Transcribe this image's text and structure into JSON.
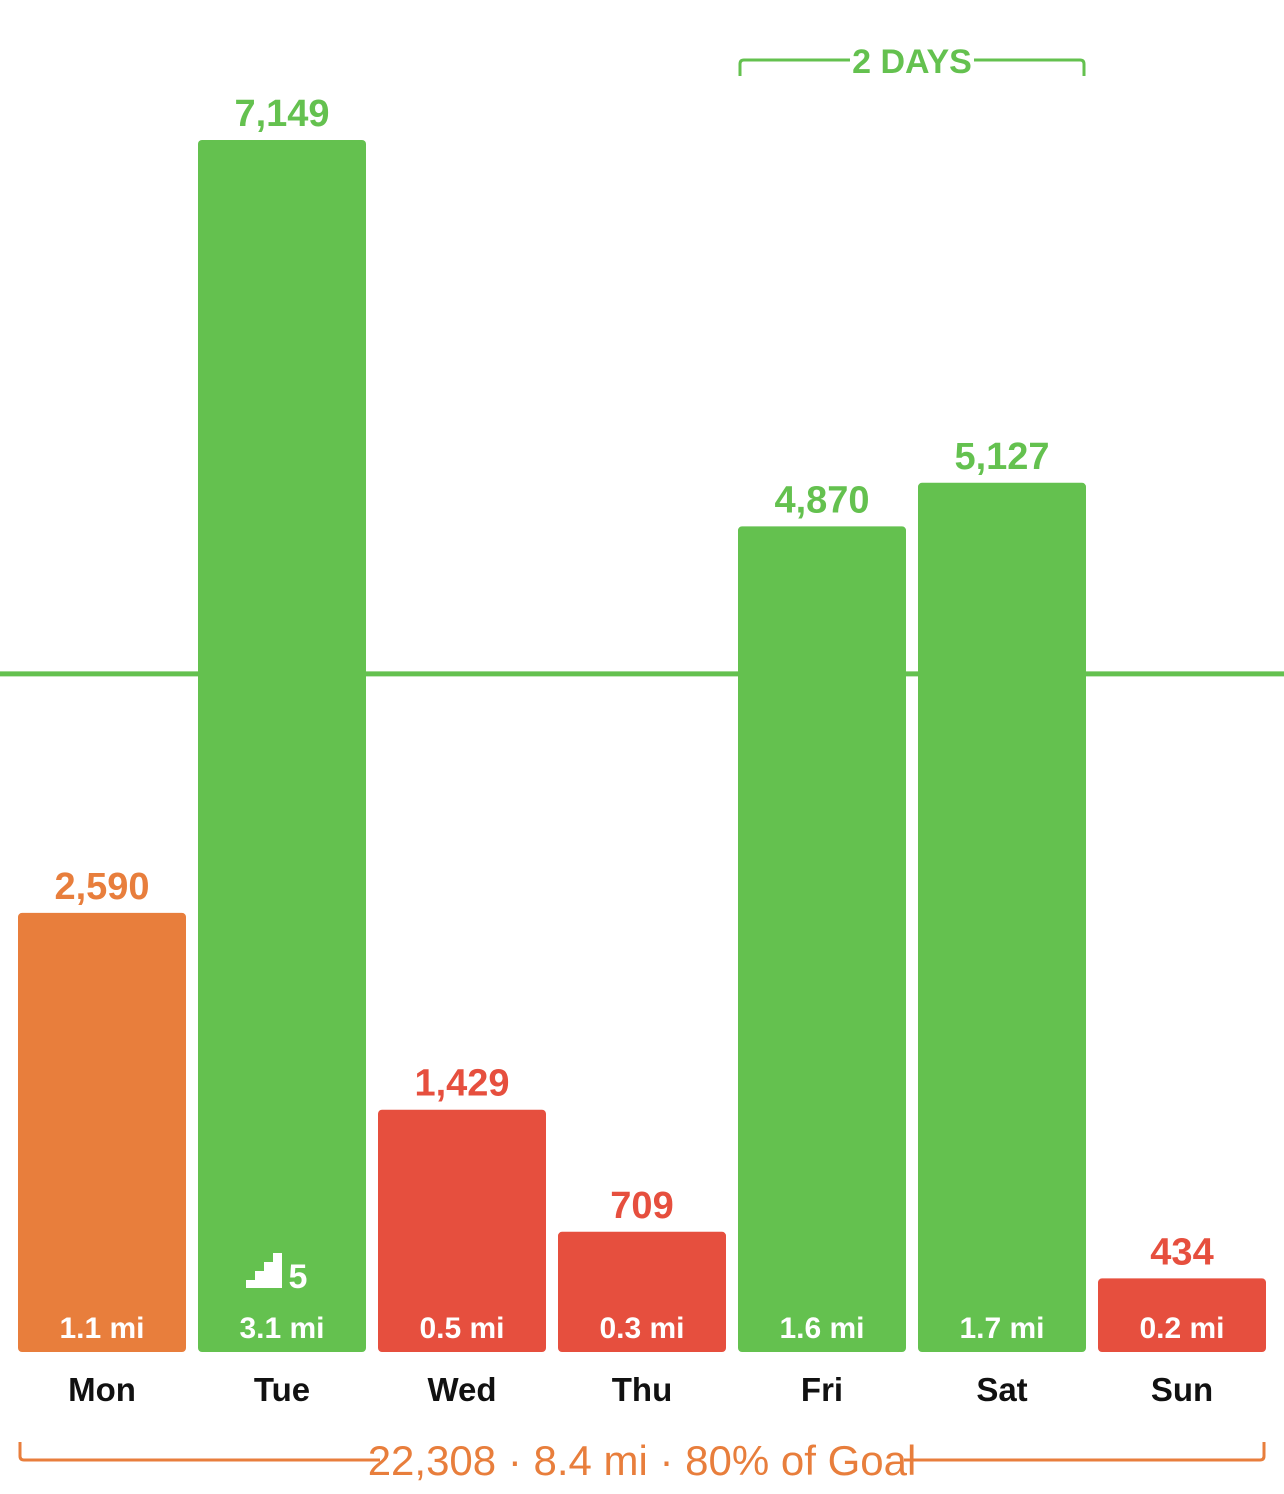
{
  "colors": {
    "green": "#64C14F",
    "orange": "#E87E3C",
    "red": "#E64F3E",
    "text_dark": "#111111",
    "text_on_bar": "#ffffff"
  },
  "chart_data": {
    "type": "bar",
    "categories": [
      "Mon",
      "Tue",
      "Wed",
      "Thu",
      "Fri",
      "Sat",
      "Sun"
    ],
    "values": [
      2590,
      7149,
      1429,
      709,
      4870,
      5127,
      434
    ],
    "value_labels": [
      "2,590",
      "7,149",
      "1,429",
      "709",
      "4,870",
      "5,127",
      "434"
    ],
    "distance_labels": [
      "1.1 mi",
      "3.1 mi",
      "0.5 mi",
      "0.3 mi",
      "1.6 mi",
      "1.7 mi",
      "0.2 mi"
    ],
    "status": [
      "orange",
      "green",
      "red",
      "red",
      "green",
      "green",
      "red"
    ],
    "goal": 4000,
    "ylim": [
      0,
      7149
    ],
    "grid": false,
    "stairs_badge": {
      "day": "Tue",
      "icon": "stairs-icon",
      "value": "5"
    },
    "streak": {
      "label": "2 DAYS",
      "from": "Fri",
      "to": "Sat"
    },
    "summary": "22,308 · 8.4 mi · 80% of Goal"
  }
}
